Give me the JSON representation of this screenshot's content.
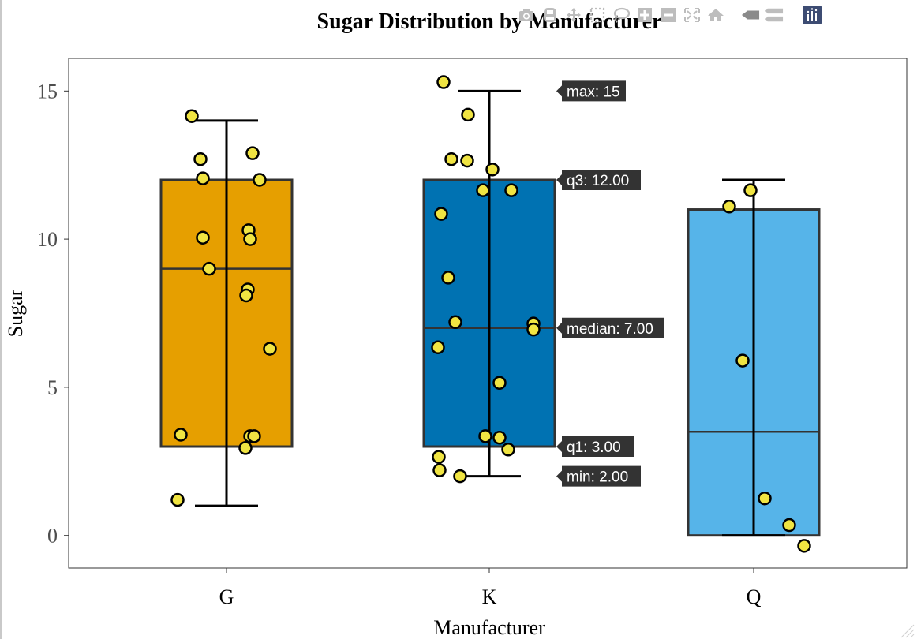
{
  "chart_data": {
    "type": "box",
    "title": "Sugar Distribution by Manufacturer",
    "xlabel": "Manufacturer",
    "ylabel": "Sugar",
    "categories": [
      "G",
      "K",
      "Q"
    ],
    "ylim": [
      -1.1,
      16.1
    ],
    "yticks": [
      0,
      5,
      10,
      15
    ],
    "grid": false,
    "box_colors": {
      "G": "#E69F00",
      "K": "#0072B2",
      "Q": "#56B4E9"
    },
    "point_color": "#F0E442",
    "boxes": [
      {
        "category": "G",
        "min": 1,
        "q1": 3,
        "median": 9,
        "q3": 12,
        "max": 14
      },
      {
        "category": "K",
        "min": 2,
        "q1": 3,
        "median": 7,
        "q3": 12,
        "max": 15
      },
      {
        "category": "Q",
        "min": 0,
        "q1": 0,
        "median": 3.5,
        "q3": 11,
        "max": 12
      }
    ],
    "points": [
      {
        "category": "G",
        "values": [
          14.15,
          12.7,
          12.9,
          12.05,
          12.0,
          10.3,
          10.05,
          10.0,
          9.0,
          8.3,
          8.1,
          6.3,
          3.4,
          3.35,
          3.35,
          2.95,
          1.2
        ]
      },
      {
        "category": "K",
        "values": [
          15.3,
          14.2,
          12.7,
          12.65,
          12.35,
          11.65,
          11.65,
          10.85,
          8.7,
          7.2,
          7.15,
          6.95,
          6.35,
          5.15,
          3.35,
          3.3,
          2.9,
          2.65,
          2.2,
          2.0
        ]
      },
      {
        "category": "Q",
        "values": [
          11.65,
          11.1,
          5.9,
          1.25,
          0.35,
          -0.35
        ]
      }
    ],
    "hover_labels": [
      {
        "text": "max: 15",
        "value": 15
      },
      {
        "text": "q3: 12.00",
        "value": 12
      },
      {
        "text": "median: 7.00",
        "value": 7
      },
      {
        "text": "q1: 3.00",
        "value": 3
      },
      {
        "text": "min: 2.00",
        "value": 2
      }
    ]
  },
  "modebar": {
    "icons": [
      "camera-icon",
      "save-icon",
      "pan-icon",
      "box-select-icon",
      "lasso-icon",
      "zoom-in-icon",
      "zoom-out-icon",
      "autoscale-icon",
      "reset-icon",
      "spike-icon",
      "compare-icon",
      "logo-icon"
    ]
  }
}
